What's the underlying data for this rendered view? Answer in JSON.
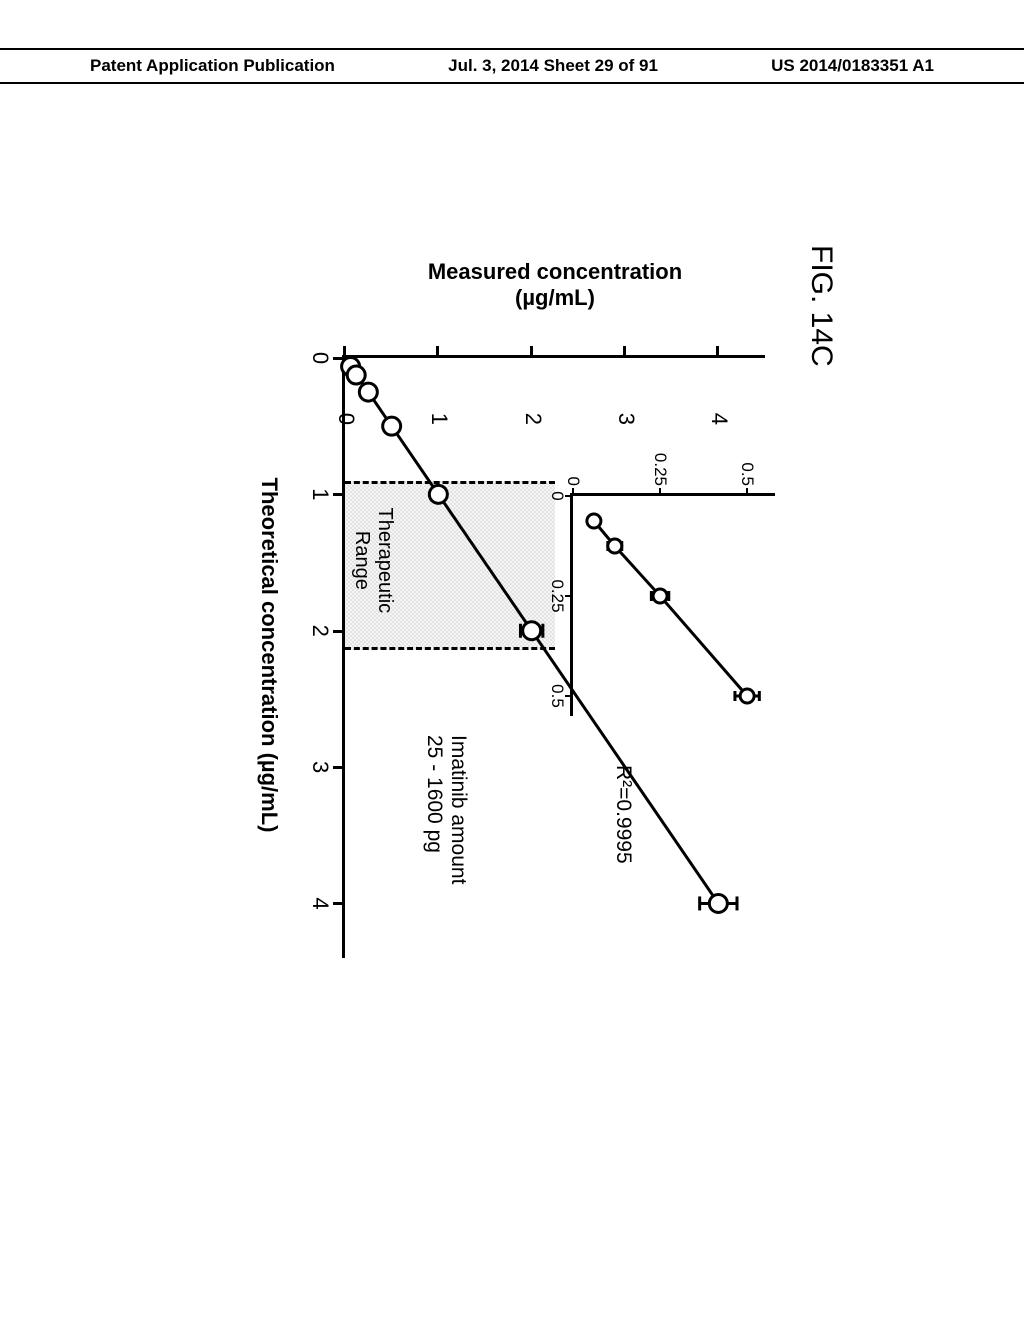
{
  "header": {
    "left": "Patent Application Publication",
    "center": "Jul. 3, 2014  Sheet 29 of 91",
    "right": "US 2014/0183351 A1"
  },
  "figure": {
    "label": "FIG. 14C",
    "x_title": "Theoretical concentration (µg/mL)",
    "y_title": "Measured concentration\n(µg/mL)",
    "r_squared": "R²=0.9995",
    "amount_line1": "Imatinib amount",
    "amount_line2": "25 - 1600 pg",
    "therapeutic_label": "Therapeutic\nRange",
    "therapeutic_range": {
      "xmin": 0.9,
      "xmax": 2.1
    },
    "main": {
      "xlim": [
        0,
        4.4
      ],
      "ylim": [
        0,
        4.5
      ],
      "xticks": [
        0,
        1,
        2,
        3,
        4
      ],
      "yticks": [
        0,
        1,
        2,
        3,
        4
      ],
      "points_x": [
        0.0625,
        0.125,
        0.25,
        0.5,
        1.0,
        2.0,
        4.0
      ],
      "points_y": [
        0.06,
        0.12,
        0.25,
        0.5,
        1.0,
        2.0,
        4.0
      ],
      "yerr": [
        0.015,
        0.03,
        0.03,
        0.05,
        0.07,
        0.12,
        0.2
      ],
      "marker_color": "#ffffff",
      "line_color": "#000000",
      "bg_color": "#ffffff"
    },
    "inset": {
      "xlim": [
        0,
        0.55
      ],
      "ylim": [
        0,
        0.58
      ],
      "xticks": [
        0,
        0.25,
        0.5
      ],
      "yticks": [
        0,
        0.25,
        0.5
      ],
      "ytick_labels": [
        "0",
        "0.25",
        "0.5"
      ],
      "xtick_labels": [
        "0",
        "0.25",
        "0.5"
      ],
      "points_x": [
        0.0625,
        0.125,
        0.25,
        0.5
      ],
      "points_y": [
        0.06,
        0.12,
        0.25,
        0.5
      ],
      "yerr": [
        0.015,
        0.02,
        0.025,
        0.035
      ]
    }
  }
}
